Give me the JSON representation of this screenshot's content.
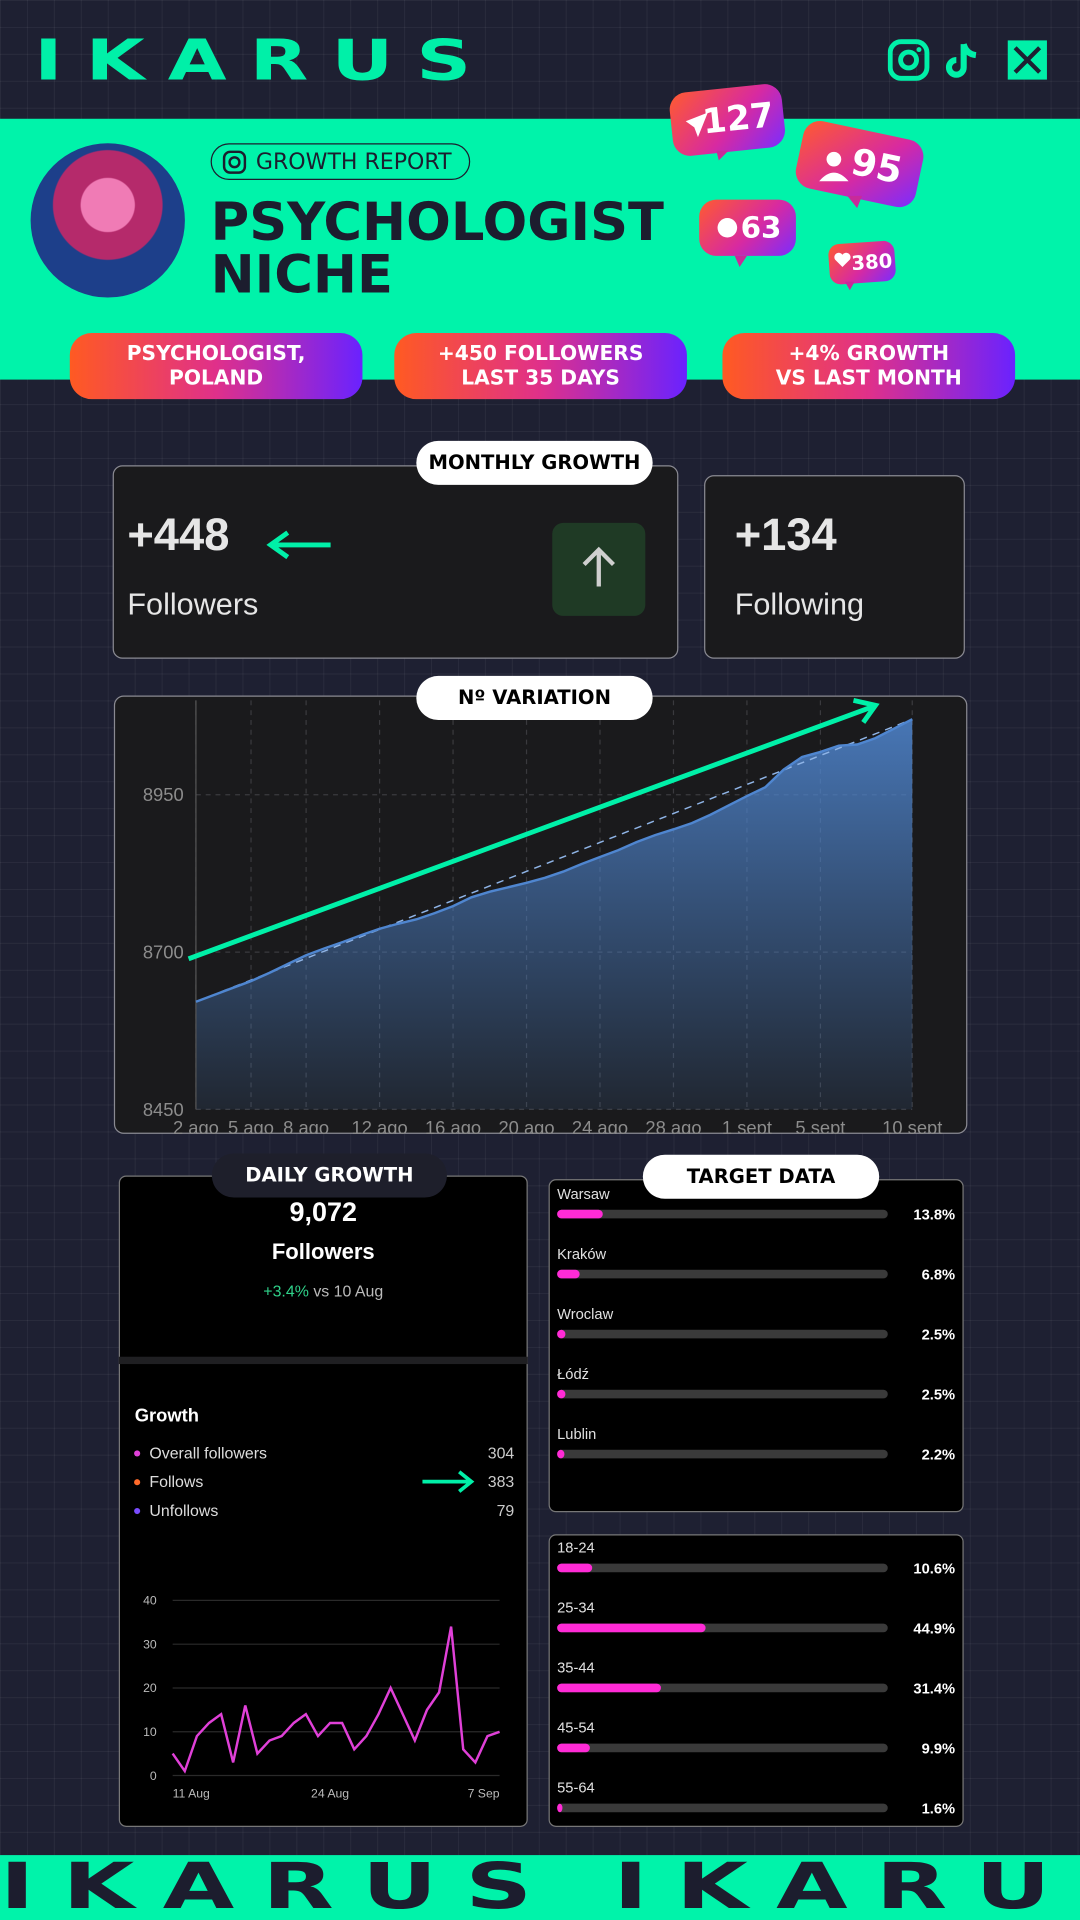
{
  "brand": "IKARUS",
  "header": {
    "badge": "GROWTH REPORT",
    "title_lines": [
      "PSYCHOLOGIST",
      "NICHE"
    ],
    "notifications": [
      127,
      95,
      63,
      380
    ]
  },
  "highlights": [
    [
      "PSYCHOLOGIST,",
      "POLAND"
    ],
    [
      "+450 FOLLOWERS",
      "LAST 35 DAYS"
    ],
    [
      "+4% GROWTH",
      "VS LAST MONTH"
    ]
  ],
  "monthly_growth": {
    "label": "MONTHLY GROWTH",
    "cards": [
      {
        "value": "+448",
        "label": "Followers"
      },
      {
        "value": "+134",
        "label": "Following"
      }
    ]
  },
  "daily_growth": {
    "label": "DAILY GROWTH",
    "total": "9,072",
    "total_label": "Followers",
    "change": "+3.4%",
    "change_ref": "vs 10 Aug",
    "section": "Growth",
    "items": [
      {
        "name": "Overall followers",
        "value": 304
      },
      {
        "name": "Follows",
        "value": 383
      },
      {
        "name": "Unfollows",
        "value": 79
      }
    ]
  },
  "target_data": {
    "label": "TARGET DATA"
  },
  "footer": [
    "IKARUS",
    "IKARUS"
  ],
  "chart_data": [
    {
      "type": "area",
      "title": "Nº VARIATION",
      "categories": [
        "2 ago",
        null,
        null,
        "5 ago",
        null,
        null,
        "8 ago",
        null,
        null,
        null,
        "12 ago",
        null,
        null,
        null,
        "16 ago",
        null,
        null,
        null,
        "20 ago",
        null,
        null,
        null,
        "24 ago",
        null,
        null,
        null,
        "28 ago",
        null,
        null,
        null,
        "1 sept",
        null,
        null,
        null,
        "5 sept",
        null,
        null,
        null,
        null,
        "10 sept"
      ],
      "values": [
        8621,
        8632,
        8643,
        8654,
        8667,
        8681,
        8695,
        8706,
        8716,
        8727,
        8737,
        8745,
        8752,
        8762,
        8773,
        8787,
        8796,
        8803,
        8810,
        8818,
        8828,
        8840,
        8851,
        8862,
        8875,
        8886,
        8895,
        8905,
        8918,
        8933,
        8948,
        8962,
        8990,
        9010,
        9018,
        9028,
        9030,
        9040,
        9055,
        9070
      ],
      "color": "#4f86d0",
      "ylim": [
        8450,
        9100
      ],
      "yticks": [
        8450,
        8700,
        8950
      ],
      "grid": true
    },
    {
      "type": "line",
      "categories": [
        "11 Aug",
        null,
        null,
        null,
        null,
        null,
        null,
        null,
        null,
        null,
        null,
        null,
        null,
        "24 Aug",
        null,
        null,
        null,
        null,
        null,
        null,
        null,
        null,
        null,
        null,
        null,
        null,
        null,
        "7 Sep"
      ],
      "values": [
        5,
        1,
        9,
        12,
        14,
        3,
        16,
        5,
        8,
        9,
        12,
        14,
        9,
        12,
        12,
        6,
        9,
        14,
        20,
        14,
        8,
        15,
        19,
        34,
        6,
        3,
        9,
        10
      ],
      "color": "#e040d8",
      "ylim": [
        0,
        40
      ],
      "yticks": [
        0,
        10,
        20,
        30,
        40
      ],
      "grid": true
    },
    {
      "type": "bar",
      "orientation": "horizontal",
      "categories": [
        "Warsaw",
        "Kraków",
        "Wroclaw",
        "Łódź",
        "Lublin"
      ],
      "values": [
        13.8,
        6.8,
        2.5,
        2.5,
        2.2
      ],
      "value_labels": [
        "13.8%",
        "6.8%",
        "2.5%",
        "2.5%",
        "2.2%"
      ],
      "xlim": [
        0,
        100
      ],
      "color": "#ff2bd6"
    },
    {
      "type": "bar",
      "orientation": "horizontal",
      "categories": [
        "18-24",
        "25-34",
        "35-44",
        "45-54",
        "55-64"
      ],
      "values": [
        10.6,
        44.9,
        31.4,
        9.9,
        1.6
      ],
      "value_labels": [
        "10.6%",
        "44.9%",
        "31.4%",
        "9.9%",
        "1.6%"
      ],
      "xlim": [
        0,
        100
      ],
      "color": "#ff2bd6"
    }
  ]
}
